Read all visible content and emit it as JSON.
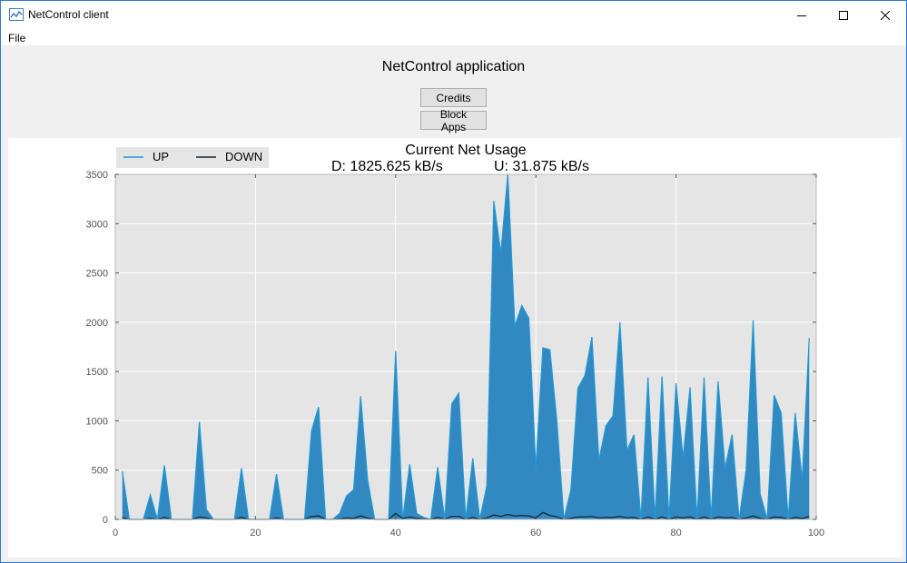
{
  "window": {
    "title": "NetControl client",
    "icons": {
      "app": "network-chart-icon",
      "minimize": "minimize-icon",
      "maximize": "maximize-icon",
      "close": "close-icon"
    }
  },
  "menu": {
    "file": "File"
  },
  "app": {
    "heading": "NetControl application",
    "credits_label": "Credits",
    "block_apps_label": "Block Apps"
  },
  "colors": {
    "up": "#3288c0",
    "up_line": "#1f9ad6",
    "down": "#122a3a",
    "plot_bg": "#e5e5e5",
    "grid": "#ffffff"
  },
  "chart_data": {
    "type": "area",
    "title": "Current Net Usage",
    "subtitle_d": "D: 1825.625 kB/s",
    "subtitle_u": "U: 31.875 kB/s",
    "xlim": [
      0,
      100
    ],
    "ylim": [
      0,
      3500
    ],
    "xticks": [
      "0",
      "20",
      "40",
      "60",
      "80",
      "100"
    ],
    "yticks": [
      "0",
      "500",
      "1000",
      "1500",
      "2000",
      "2500",
      "3000",
      "3500"
    ],
    "grid": true,
    "legend": "top-left",
    "x": [
      1,
      2,
      3,
      4,
      5,
      6,
      7,
      8,
      9,
      10,
      11,
      12,
      13,
      14,
      15,
      16,
      17,
      18,
      19,
      20,
      21,
      22,
      23,
      24,
      25,
      26,
      27,
      28,
      29,
      30,
      31,
      32,
      33,
      34,
      35,
      36,
      37,
      38,
      39,
      40,
      41,
      42,
      43,
      44,
      45,
      46,
      47,
      48,
      49,
      50,
      51,
      52,
      53,
      54,
      55,
      56,
      57,
      58,
      59,
      60,
      61,
      62,
      63,
      64,
      65,
      66,
      67,
      68,
      69,
      70,
      71,
      72,
      73,
      74,
      75,
      76,
      77,
      78,
      79,
      80,
      81,
      82,
      83,
      84,
      85,
      86,
      87,
      88,
      89,
      90,
      91,
      92,
      93,
      94,
      95,
      96,
      97,
      98,
      99
    ],
    "series": [
      {
        "name": "UP",
        "values": [
          490,
          0,
          0,
          0,
          250,
          0,
          550,
          0,
          0,
          0,
          0,
          990,
          100,
          0,
          0,
          0,
          0,
          520,
          0,
          0,
          0,
          0,
          460,
          0,
          0,
          0,
          0,
          900,
          1140,
          0,
          0,
          60,
          240,
          300,
          1250,
          400,
          0,
          0,
          0,
          1710,
          0,
          560,
          60,
          20,
          0,
          530,
          0,
          1170,
          1280,
          0,
          620,
          0,
          340,
          3230,
          2700,
          3500,
          1960,
          2170,
          2040,
          520,
          1740,
          1720,
          1000,
          0,
          300,
          1330,
          1460,
          1850,
          600,
          950,
          1050,
          2000,
          700,
          860,
          0,
          1440,
          0,
          1450,
          0,
          1380,
          620,
          1340,
          0,
          1440,
          0,
          1400,
          520,
          860,
          0,
          500,
          2020,
          260,
          0,
          1260,
          1080,
          0,
          1080,
          400,
          1840
        ]
      },
      {
        "name": "DOWN",
        "values": [
          20,
          0,
          0,
          0,
          10,
          0,
          20,
          0,
          0,
          0,
          0,
          25,
          15,
          0,
          0,
          0,
          0,
          20,
          0,
          0,
          0,
          0,
          15,
          0,
          0,
          0,
          0,
          30,
          35,
          0,
          0,
          5,
          15,
          10,
          35,
          15,
          0,
          0,
          0,
          60,
          10,
          25,
          10,
          5,
          0,
          20,
          0,
          30,
          30,
          0,
          20,
          0,
          15,
          45,
          30,
          50,
          35,
          40,
          35,
          15,
          70,
          40,
          25,
          0,
          10,
          25,
          25,
          30,
          15,
          20,
          20,
          30,
          15,
          20,
          0,
          25,
          0,
          25,
          0,
          25,
          15,
          25,
          0,
          25,
          0,
          25,
          15,
          20,
          0,
          15,
          35,
          10,
          0,
          25,
          20,
          0,
          20,
          10,
          30
        ]
      }
    ]
  }
}
